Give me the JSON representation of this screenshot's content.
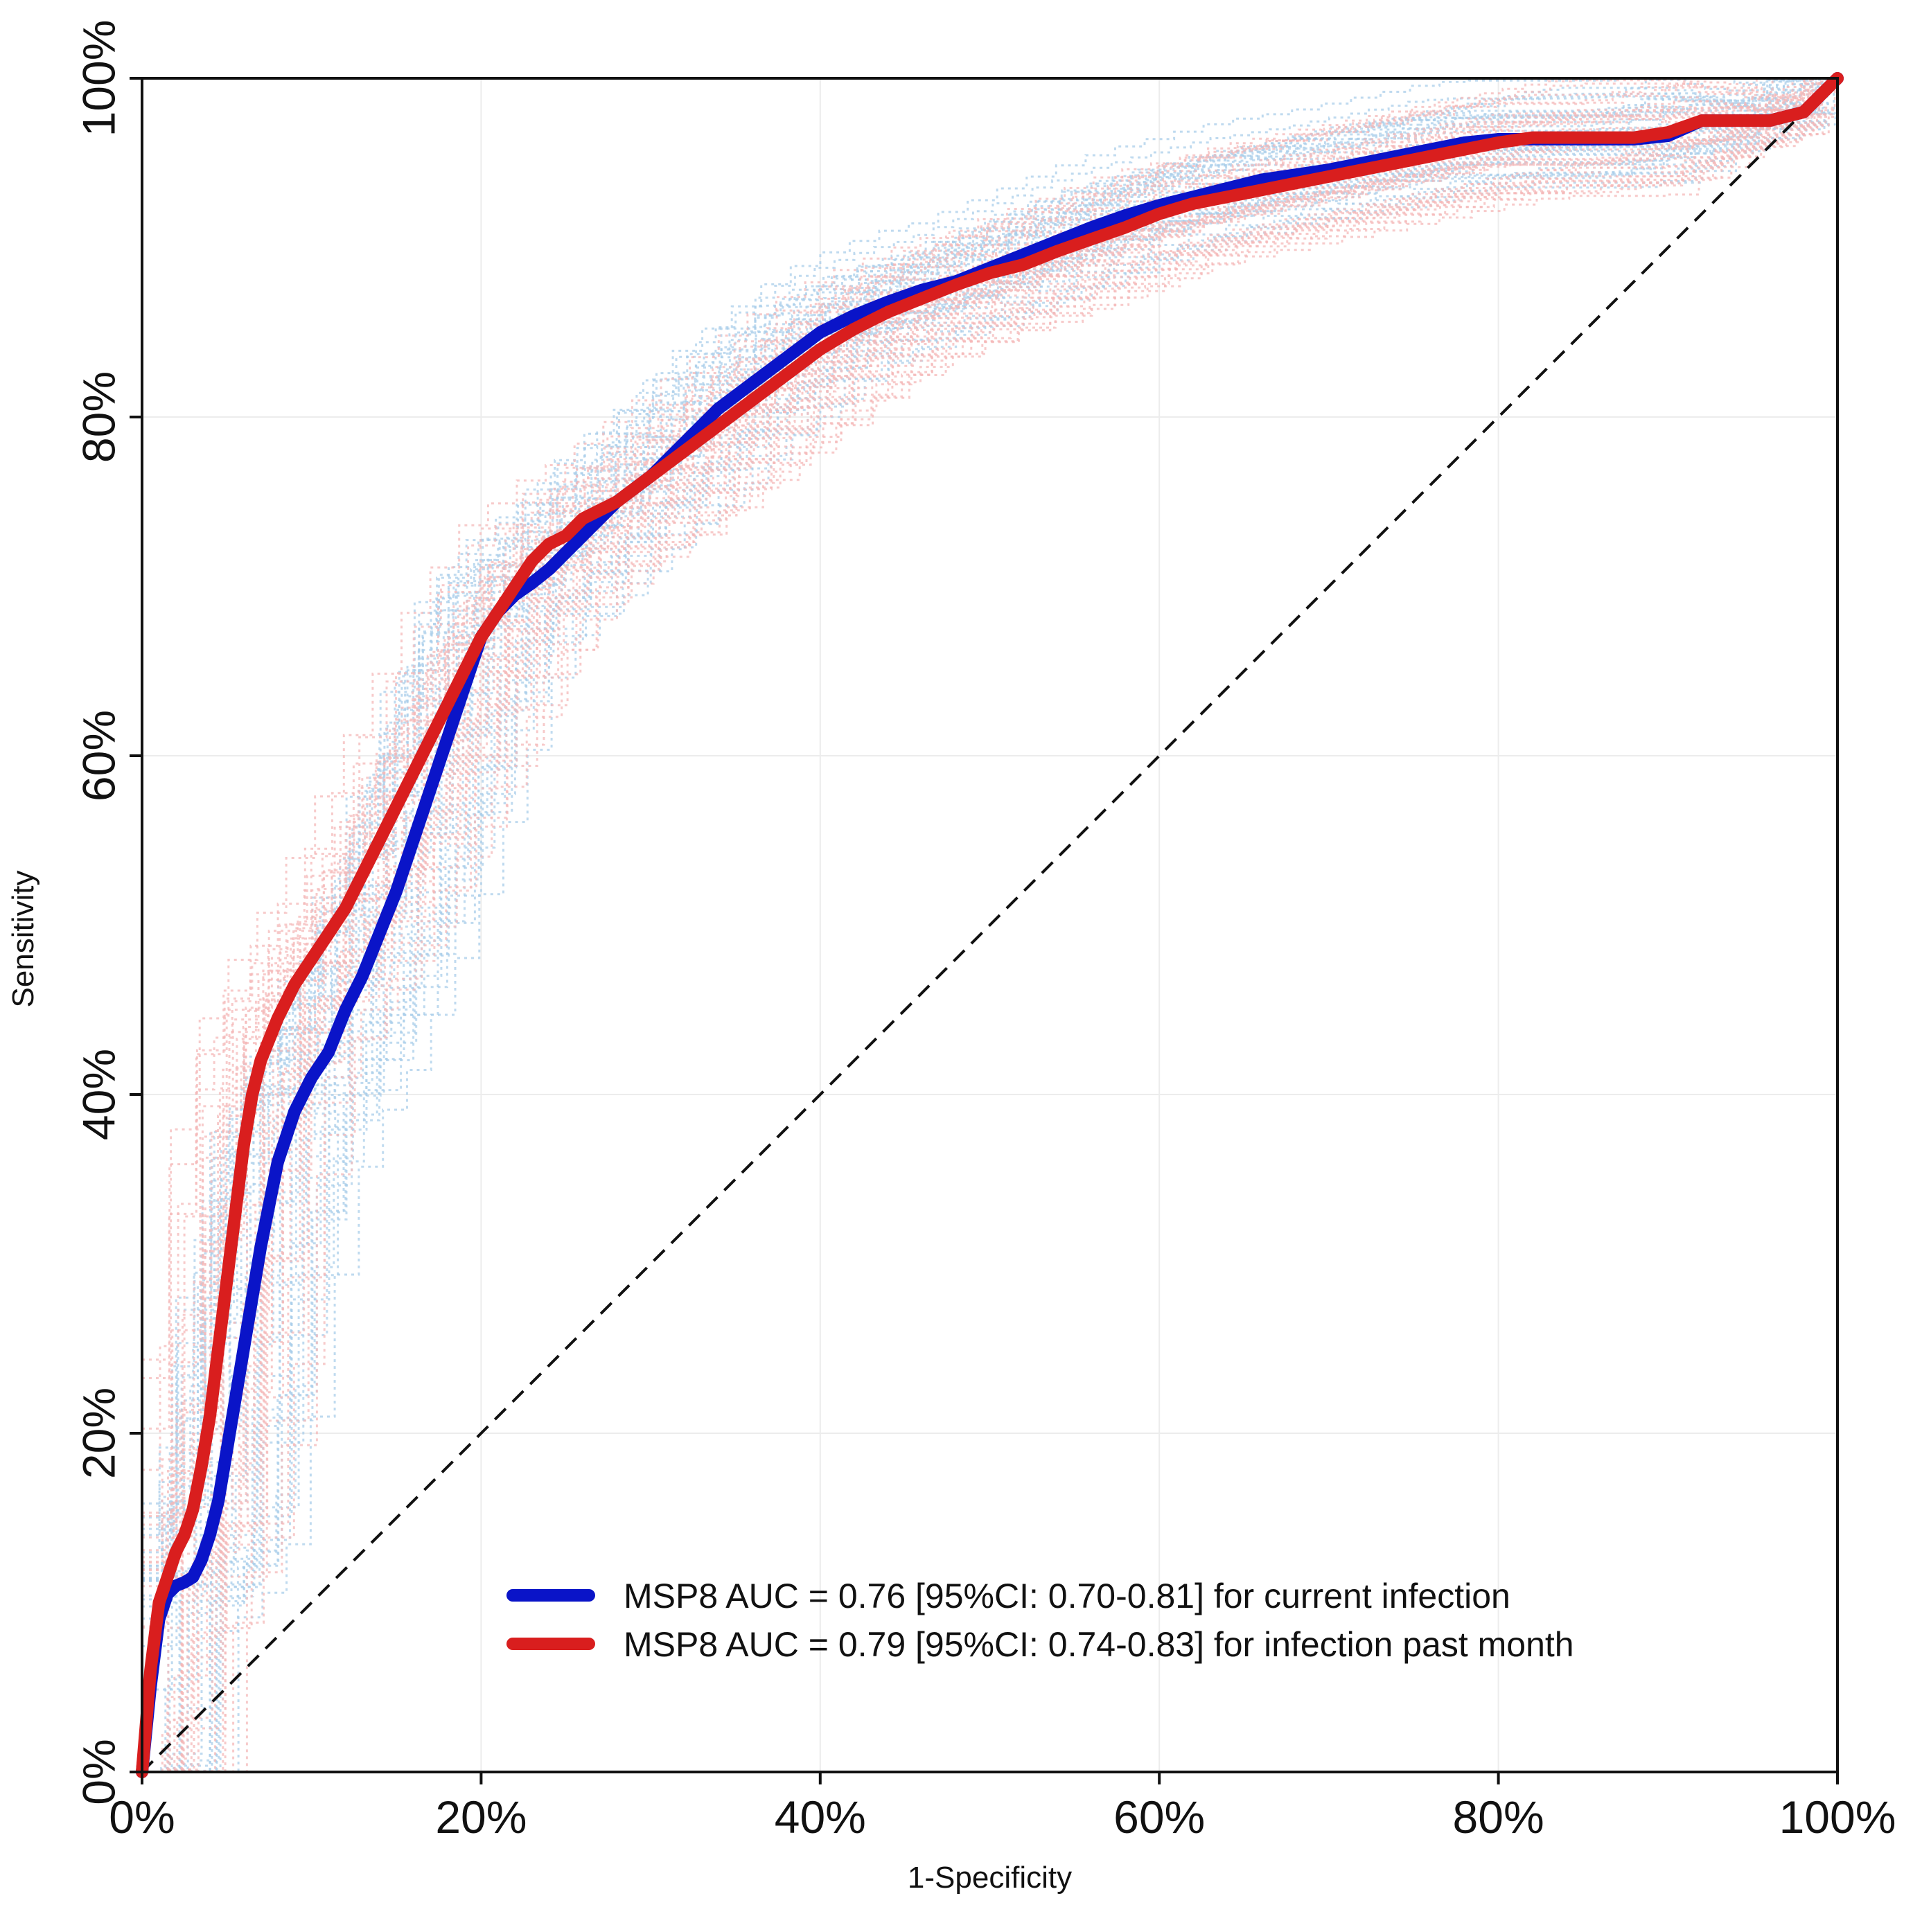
{
  "chart_data": {
    "type": "line",
    "title": "",
    "xlabel": "1-Specificity",
    "ylabel": "Sensitivity",
    "xlim": [
      0,
      100
    ],
    "ylim": [
      0,
      100
    ],
    "x_ticks": [
      0,
      20,
      40,
      60,
      80,
      100
    ],
    "y_ticks": [
      0,
      20,
      40,
      60,
      80,
      100
    ],
    "x_tick_labels": [
      "0%",
      "20%",
      "40%",
      "60%",
      "80%",
      "100%"
    ],
    "y_tick_labels": [
      "0%",
      "20%",
      "40%",
      "60%",
      "80%",
      "100%"
    ],
    "grid": true,
    "legend_position": "bottom-right",
    "reference_line": {
      "x": [
        0,
        100
      ],
      "y": [
        0,
        100
      ],
      "style": "dashed",
      "color": "#111111"
    },
    "series": [
      {
        "name": "MSP8 AUC = 0.76 [95%CI: 0.70-0.81] for current infection",
        "color": "#0a14c8",
        "band_color": "#a9cdea",
        "x": [
          0,
          0.5,
          1.0,
          1.5,
          2.0,
          2.5,
          3.0,
          3.5,
          4.0,
          4.5,
          5.0,
          6.0,
          7.0,
          8.0,
          9.0,
          10.0,
          11.0,
          12.0,
          13.0,
          14.0,
          15.0,
          16.0,
          17.0,
          18.0,
          19.0,
          20.0,
          21.0,
          22.0,
          23.0,
          24.0,
          25.0,
          26.0,
          27.0,
          28.0,
          30.0,
          32.0,
          34.0,
          36.0,
          38.0,
          40.0,
          42.0,
          44.0,
          46.0,
          48.0,
          50.0,
          52.0,
          54.0,
          56.0,
          58.0,
          60.0,
          62.0,
          64.0,
          66.0,
          68.0,
          70.0,
          72.0,
          74.0,
          76.0,
          78.0,
          80.0,
          82.0,
          84.0,
          86.0,
          88.0,
          90.0,
          92.0,
          94.0,
          96.0,
          98.0,
          99.0,
          100.0
        ],
        "y": [
          0,
          5.0,
          9.0,
          10.5,
          11.0,
          11.2,
          11.5,
          12.5,
          14.0,
          16.0,
          19.0,
          25.0,
          31.0,
          36.0,
          39.0,
          41.0,
          42.5,
          45.0,
          47.0,
          49.5,
          52.0,
          55.0,
          58.0,
          61.0,
          64.0,
          67.0,
          68.5,
          69.5,
          70.2,
          71.0,
          72.0,
          73.0,
          74.0,
          75.0,
          76.5,
          78.5,
          80.5,
          82.0,
          83.5,
          85.0,
          86.0,
          86.8,
          87.5,
          88.0,
          88.8,
          89.6,
          90.4,
          91.2,
          91.9,
          92.5,
          93.0,
          93.5,
          94.0,
          94.3,
          94.6,
          95.0,
          95.4,
          95.8,
          96.2,
          96.4,
          96.4,
          96.4,
          96.4,
          96.4,
          96.6,
          97.5,
          97.5,
          97.5,
          98.0,
          99.0,
          100.0
        ]
      },
      {
        "name": "MSP8 AUC = 0.79 [95%CI: 0.74-0.83] for infection past month",
        "color": "#d91e1e",
        "band_color": "#f4b8b8",
        "x": [
          0,
          0.5,
          1.0,
          1.5,
          2.0,
          2.5,
          3.0,
          3.5,
          4.0,
          4.5,
          5.0,
          5.5,
          6.0,
          6.5,
          7.0,
          8.0,
          9.0,
          10.0,
          11.0,
          12.0,
          13.0,
          14.0,
          15.0,
          16.0,
          17.0,
          18.0,
          19.0,
          20.0,
          21.0,
          22.0,
          23.0,
          24.0,
          25.0,
          26.0,
          28.0,
          30.0,
          32.0,
          34.0,
          36.0,
          38.0,
          40.0,
          42.0,
          44.0,
          46.0,
          48.0,
          50.0,
          52.0,
          54.0,
          56.0,
          58.0,
          60.0,
          62.0,
          64.0,
          66.0,
          68.0,
          70.0,
          72.0,
          74.0,
          76.0,
          78.0,
          80.0,
          82.0,
          84.0,
          86.0,
          88.0,
          90.0,
          92.0,
          94.0,
          96.0,
          98.0,
          99.0,
          100.0
        ],
        "y": [
          0,
          6.0,
          10.0,
          11.5,
          13.0,
          14.0,
          15.5,
          18.0,
          21.0,
          25.0,
          29.0,
          33.0,
          37.0,
          40.0,
          42.0,
          44.5,
          46.5,
          48.0,
          49.5,
          51.0,
          53.0,
          55.0,
          57.0,
          59.0,
          61.0,
          63.0,
          65.0,
          67.0,
          68.5,
          70.0,
          71.5,
          72.5,
          73.0,
          74.0,
          75.0,
          76.5,
          78.0,
          79.5,
          81.0,
          82.5,
          84.0,
          85.2,
          86.2,
          87.0,
          87.8,
          88.5,
          89.0,
          89.8,
          90.5,
          91.2,
          92.0,
          92.6,
          93.0,
          93.4,
          93.8,
          94.2,
          94.6,
          95.0,
          95.4,
          95.8,
          96.2,
          96.5,
          96.5,
          96.5,
          96.5,
          96.8,
          97.5,
          97.5,
          97.5,
          98.0,
          99.0,
          100.0
        ]
      }
    ]
  }
}
